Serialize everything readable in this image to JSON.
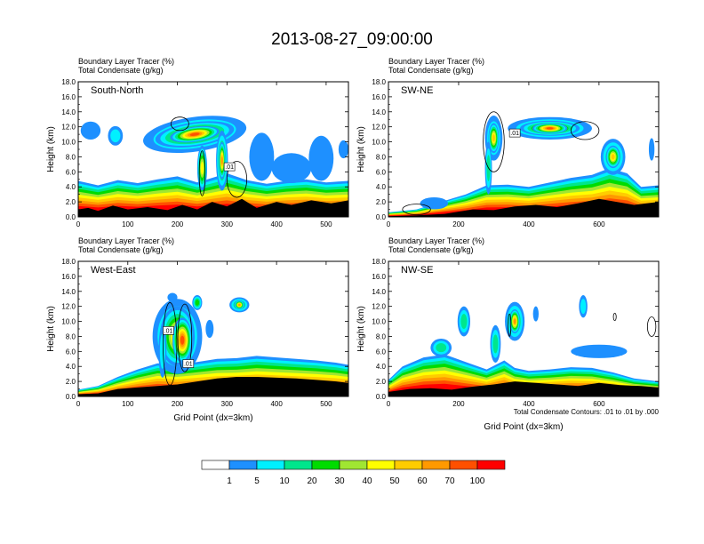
{
  "title": "2013-08-27_09:00:00",
  "colors": {
    "levels": [
      "#ffffff",
      "#1e90ff",
      "#00f0ff",
      "#00e68c",
      "#00dc00",
      "#a0e632",
      "#ffff00",
      "#ffcc00",
      "#ff9900",
      "#ff5000",
      "#ff0000"
    ],
    "ground": "#000000",
    "contour": "#000000",
    "frame": "#000000"
  },
  "colorbar": {
    "labels": [
      "1",
      "5",
      "10",
      "20",
      "30",
      "40",
      "50",
      "60",
      "70",
      "100"
    ]
  },
  "chart_data": [
    {
      "type": "heatmap",
      "name": "South-North",
      "label_line1": "Boundary Layer Tracer    (%)",
      "label_line2": "Total Condensate    (g/kg)",
      "xlim": [
        0,
        545
      ],
      "ylim": [
        0,
        18
      ],
      "xticks": [
        "0",
        "100",
        "200",
        "300",
        "400",
        "500"
      ],
      "yticks": [
        "0.0",
        "2.0",
        "4.0",
        "6.0",
        "8.0",
        "10.0",
        "12.0",
        "14.0",
        "16.0",
        "18.0"
      ],
      "ylabel": "Height (km)",
      "xlabel": "",
      "contour_labels": [
        ".01"
      ],
      "marker_x": 275,
      "note": ""
    },
    {
      "type": "heatmap",
      "name": "SW-NE",
      "label_line1": "Boundary Layer Tracer    (%)",
      "label_line2": "Total Condensate    (g/kg)",
      "xlim": [
        0,
        770
      ],
      "ylim": [
        0,
        18
      ],
      "xticks": [
        "0",
        "200",
        "400",
        "600"
      ],
      "yticks": [
        "0.0",
        "2.0",
        "4.0",
        "6.0",
        "8.0",
        "10.0",
        "12.0",
        "14.0",
        "16.0",
        "18.0"
      ],
      "ylabel": "Height (km)",
      "xlabel": "",
      "contour_labels": [
        ".01"
      ],
      "marker_x": 385,
      "note": ""
    },
    {
      "type": "heatmap",
      "name": "West-East",
      "label_line1": "Boundary Layer Tracer    (%)",
      "label_line2": "Total Condensate    (g/kg)",
      "xlim": [
        0,
        545
      ],
      "ylim": [
        0,
        18
      ],
      "xticks": [
        "0",
        "100",
        "200",
        "300",
        "400",
        "500"
      ],
      "yticks": [
        "0.0",
        "2.0",
        "4.0",
        "6.0",
        "8.0",
        "10.0",
        "12.0",
        "14.0",
        "16.0",
        "18.0"
      ],
      "ylabel": "Height (km)",
      "xlabel": "Grid Point (dx=3km)",
      "contour_labels": [
        ".01",
        ".01"
      ],
      "marker_x": 275,
      "note": ""
    },
    {
      "type": "heatmap",
      "name": "NW-SE",
      "label_line1": "Boundary Layer Tracer    (%)",
      "label_line2": "Total Condensate    (g/kg)",
      "xlim": [
        0,
        770
      ],
      "ylim": [
        0,
        18
      ],
      "xticks": [
        "0",
        "200",
        "400",
        "600"
      ],
      "yticks": [
        "0.0",
        "2.0",
        "4.0",
        "6.0",
        "8.0",
        "10.0",
        "12.0",
        "14.0",
        "16.0",
        "18.0"
      ],
      "ylabel": "Height (km)",
      "xlabel": "Grid Point (dx=3km)",
      "contour_labels": [],
      "marker_x": 385,
      "note": "Total Condensate Contours: .01 to .01 by .000"
    }
  ]
}
